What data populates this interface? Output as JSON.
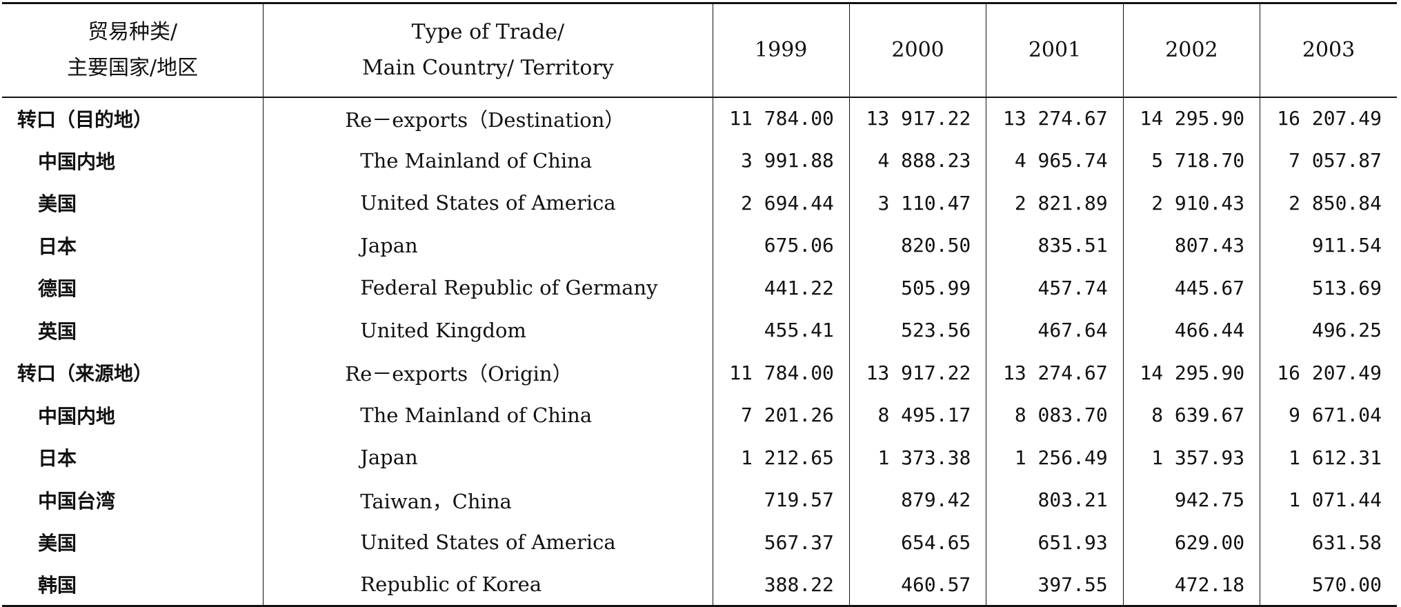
{
  "header": {
    "cn_line1": "贸易种类/",
    "cn_line2": "主要国家/地区",
    "en_line1": "Type of Trade/",
    "en_line2": "Main Country/ Territory",
    "years": [
      "1999",
      "2000",
      "2001",
      "2002",
      "2003"
    ]
  },
  "rows": [
    {
      "cn": "转口（目的地）",
      "en": "Re－exports（Destination）",
      "v": [
        "11 784.00",
        "13 917.22",
        "13 274.67",
        "14 295.90",
        "16 207.49"
      ]
    },
    {
      "cn": "中国内地",
      "en": "The Mainland of China",
      "v": [
        "3 991.88",
        "4 888.23",
        "4 965.74",
        "5 718.70",
        "7 057.87"
      ]
    },
    {
      "cn": "美国",
      "en": "United States of America",
      "v": [
        "2 694.44",
        "3 110.47",
        "2 821.89",
        "2 910.43",
        "2 850.84"
      ]
    },
    {
      "cn": "日本",
      "en": "Japan",
      "v": [
        "675.06",
        "820.50",
        "835.51",
        "807.43",
        "911.54"
      ]
    },
    {
      "cn": "德国",
      "en": "Federal Republic of Germany",
      "v": [
        "441.22",
        "505.99",
        "457.74",
        "445.67",
        "513.69"
      ]
    },
    {
      "cn": "英国",
      "en": "United Kingdom",
      "v": [
        "455.41",
        "523.56",
        "467.64",
        "466.44",
        "496.25"
      ]
    },
    {
      "cn": "转口（来源地）",
      "en": "Re－exports（Origin）",
      "v": [
        "11 784.00",
        "13 917.22",
        "13 274.67",
        "14 295.90",
        "16 207.49"
      ]
    },
    {
      "cn": "中国内地",
      "en": "The Mainland of China",
      "v": [
        "7 201.26",
        "8 495.17",
        "8 083.70",
        "8 639.67",
        "9 671.04"
      ]
    },
    {
      "cn": "日本",
      "en": "Japan",
      "v": [
        "1 212.65",
        "1 373.38",
        "1 256.49",
        "1 357.93",
        "1 612.31"
      ]
    },
    {
      "cn": "中国台湾",
      "en": "Taiwan，China",
      "v": [
        "719.57",
        "879.42",
        "803.21",
        "942.75",
        "1 071.44"
      ]
    },
    {
      "cn": "美国",
      "en": "United States of America",
      "v": [
        "567.37",
        "654.65",
        "651.93",
        "629.00",
        "631.58"
      ]
    },
    {
      "cn": "韩国",
      "en": "Republic of Korea",
      "v": [
        "388.22",
        "460.57",
        "397.55",
        "472.18",
        "570.00"
      ]
    }
  ]
}
